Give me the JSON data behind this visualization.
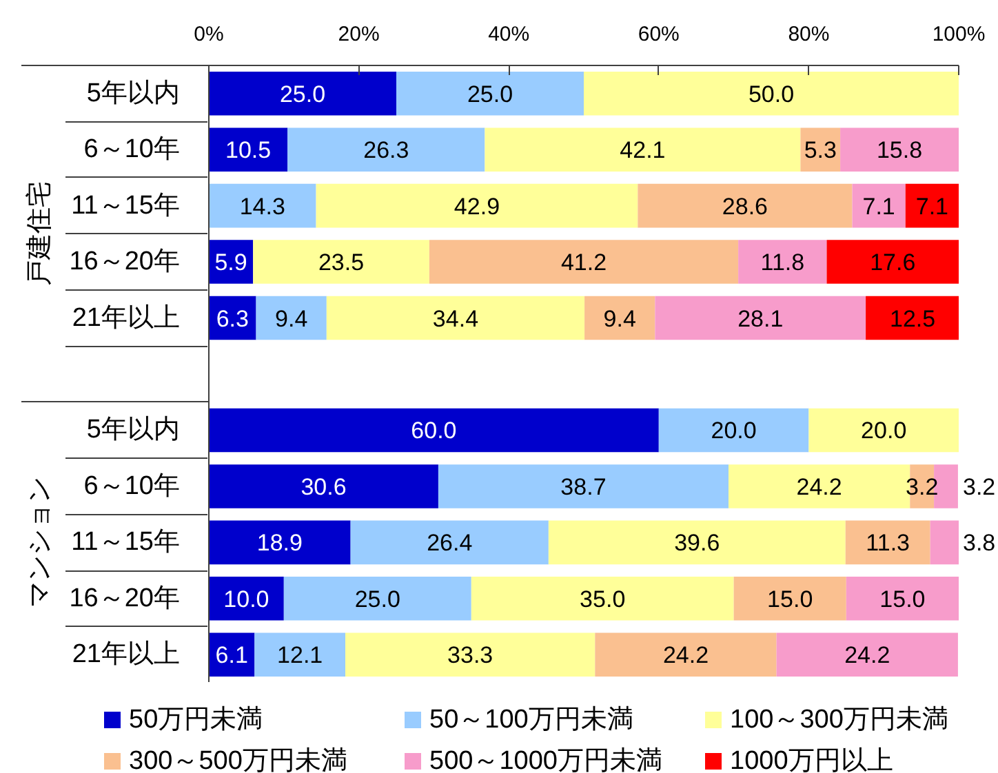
{
  "chart_data": {
    "type": "bar",
    "orientation": "horizontal",
    "stacked": true,
    "categories": [
      "5年以内",
      "6～10年",
      "11～15年",
      "16～20年",
      "21年以上",
      null,
      "5年以内",
      "6～10年",
      "11～15年",
      "16～20年",
      "21年以上"
    ],
    "annotations": [
      "戸建住宅",
      "マンション"
    ],
    "xlim": [
      0,
      100
    ],
    "xticks": [
      {
        "value": 0,
        "label": "0%"
      },
      {
        "value": 20,
        "label": "20%"
      },
      {
        "value": 40,
        "label": "40%"
      },
      {
        "value": 60,
        "label": "60%"
      },
      {
        "value": 80,
        "label": "80%"
      },
      {
        "value": 100,
        "label": "100%"
      }
    ],
    "grid": false,
    "legend": "bottom",
    "series": [
      {
        "name": "50万円未満",
        "color": "#0000cc",
        "values": [
          25.0,
          10.5,
          null,
          5.9,
          6.3,
          null,
          60.0,
          30.6,
          18.9,
          10.0,
          6.1
        ],
        "value_labels": [
          "25.0",
          "10.5",
          null,
          "5.9",
          "6.3",
          null,
          "60.0",
          "30.6",
          "18.9",
          "10.0",
          "6.1"
        ]
      },
      {
        "name": "50～100万円未満",
        "color": "#99ccff",
        "values": [
          25.0,
          26.3,
          14.3,
          null,
          9.4,
          null,
          20.0,
          38.7,
          26.4,
          25.0,
          12.1
        ],
        "value_labels": [
          "25.0",
          "26.3",
          "14.3",
          null,
          "9.4",
          null,
          "20.0",
          "38.7",
          "26.4",
          "25.0",
          "12.1"
        ]
      },
      {
        "name": "100～300万円未満",
        "color": "#ffff99",
        "values": [
          50.0,
          42.1,
          42.9,
          23.5,
          34.4,
          null,
          20.0,
          24.2,
          39.6,
          35.0,
          33.3
        ],
        "value_labels": [
          "50.0",
          "42.1",
          "42.9",
          "23.5",
          "34.4",
          null,
          "20.0",
          "24.2",
          "39.6",
          "35.0",
          "33.3"
        ]
      },
      {
        "name": "300～500万円未満",
        "color": "#fac090",
        "values": [
          null,
          5.3,
          28.6,
          41.2,
          9.4,
          null,
          null,
          3.2,
          11.3,
          15.0,
          24.2
        ],
        "value_labels": [
          null,
          "5.3",
          "28.6",
          "41.2",
          "9.4",
          null,
          null,
          "3.2",
          "11.3",
          "15.0",
          "24.2"
        ]
      },
      {
        "name": "500～1000万円未満",
        "color": "#f79ccb",
        "values": [
          null,
          15.8,
          7.1,
          11.8,
          28.1,
          null,
          null,
          3.2,
          3.8,
          15.0,
          24.2
        ],
        "value_labels": [
          null,
          "15.8",
          "7.1",
          "11.8",
          "28.1",
          null,
          null,
          "3.2",
          "3.8",
          "15.0",
          "24.2"
        ]
      },
      {
        "name": "1000万円以上",
        "color": "#ff0000",
        "values": [
          null,
          null,
          7.1,
          17.6,
          12.5,
          null,
          null,
          null,
          null,
          null,
          null
        ],
        "value_labels": [
          null,
          null,
          "7.1",
          "17.6",
          "12.5",
          null,
          null,
          null,
          null,
          null,
          null
        ]
      }
    ]
  }
}
